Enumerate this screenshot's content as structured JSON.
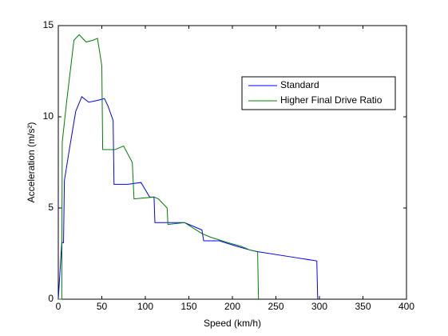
{
  "chart_data": {
    "type": "line",
    "xlabel": "Speed (km/h)",
    "ylabel": "Acceleration (m/s²)",
    "xlim": [
      0,
      400
    ],
    "ylim": [
      0,
      15
    ],
    "xticks": [
      0,
      50,
      100,
      150,
      200,
      250,
      300,
      350,
      400
    ],
    "yticks": [
      0,
      5,
      10,
      15
    ],
    "legend": "upper-right",
    "series": [
      {
        "name": "Standard",
        "color": "#0000ff",
        "x": [
          0,
          4,
          6,
          7,
          12,
          20,
          27,
          35,
          45,
          53,
          57,
          63,
          64,
          80,
          95,
          105,
          110,
          111,
          125,
          145,
          165,
          167,
          185,
          205,
          220,
          230,
          270,
          297,
          298
        ],
        "values": [
          0,
          3.1,
          3.1,
          6.5,
          8,
          10.3,
          11.1,
          10.8,
          10.9,
          11,
          10.6,
          9.8,
          6.3,
          6.3,
          6.4,
          5.6,
          5.6,
          4.2,
          4.2,
          4.2,
          3.8,
          3.2,
          3.2,
          2.9,
          2.7,
          2.6,
          2.3,
          2.1,
          0
        ]
      },
      {
        "name": "Higher Final Drive Ratio",
        "color": "#007f00",
        "x": [
          0,
          4,
          4.5,
          10,
          18,
          24,
          32,
          40,
          45,
          50,
          51,
          65,
          75,
          85,
          87,
          110,
          115,
          125,
          126,
          145,
          165,
          175,
          195,
          210,
          220,
          229,
          230
        ],
        "values": [
          0,
          0,
          8.6,
          11,
          14.2,
          14.5,
          14.1,
          14.2,
          14.3,
          12.8,
          8.2,
          8.2,
          8.4,
          7.5,
          5.5,
          5.6,
          5.5,
          5,
          4.1,
          4.2,
          3.6,
          3.4,
          3.1,
          2.9,
          2.7,
          2.6,
          0
        ]
      }
    ]
  }
}
